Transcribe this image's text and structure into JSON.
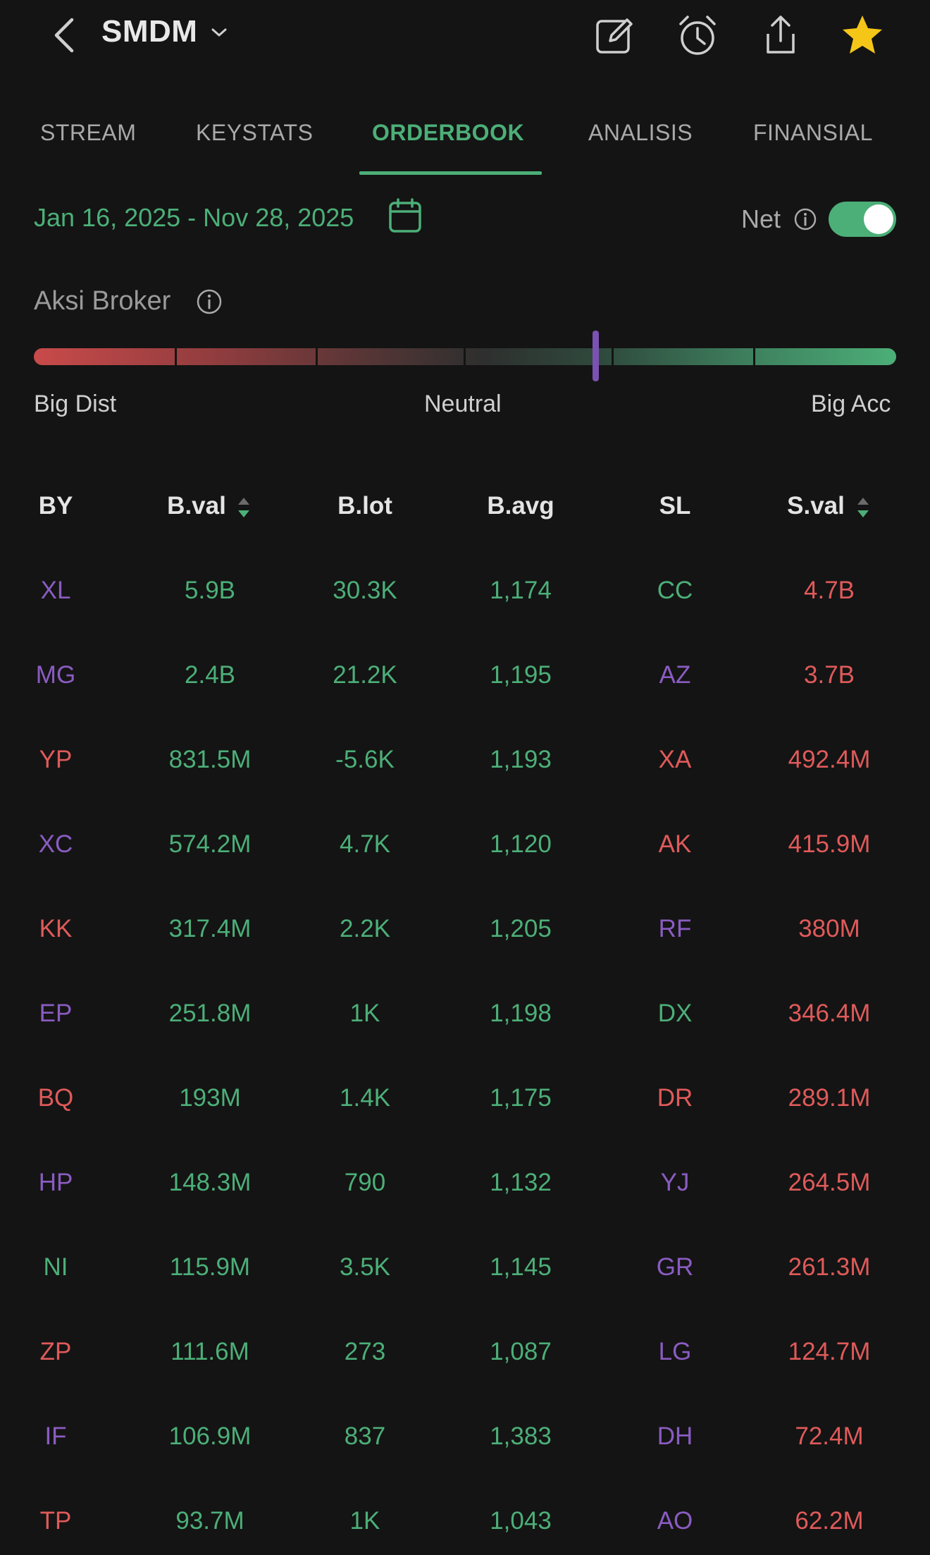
{
  "colors": {
    "green": "#4caf78",
    "red": "#e05a5a",
    "purple": "#8a5cc2",
    "muted": "#a9a9a9",
    "star": "#f5c518"
  },
  "header": {
    "ticker": "SMDM",
    "icons": [
      "back-chevron-icon",
      "chevron-down-icon",
      "edit-icon",
      "alarm-icon",
      "share-icon",
      "star-icon"
    ]
  },
  "tabs": [
    {
      "label": "STREAM",
      "active": false
    },
    {
      "label": "KEYSTATS",
      "active": false
    },
    {
      "label": "ORDERBOOK",
      "active": true
    },
    {
      "label": "ANALISIS",
      "active": false
    },
    {
      "label": "FINANSIAL",
      "active": false
    }
  ],
  "filter": {
    "date_range": "Jan 16, 2025 - Nov 28, 2025",
    "net_label": "Net",
    "net_enabled": true
  },
  "aksi": {
    "title": "Aksi Broker",
    "left_label": "Big Dist",
    "mid_label": "Neutral",
    "right_label": "Big Acc",
    "marker_level": 0.65
  },
  "table": {
    "headers": [
      "BY",
      "B.val",
      "B.lot",
      "B.avg",
      "SL",
      "S.val"
    ],
    "rows": [
      {
        "by": "XL",
        "by_c": "purple",
        "bval": "5.9B",
        "blot": "30.3K",
        "bavg": "1,174",
        "sl": "CC",
        "sl_c": "green",
        "sval": "4.7B"
      },
      {
        "by": "MG",
        "by_c": "purple",
        "bval": "2.4B",
        "blot": "21.2K",
        "bavg": "1,195",
        "sl": "AZ",
        "sl_c": "purple",
        "sval": "3.7B"
      },
      {
        "by": "YP",
        "by_c": "red",
        "bval": "831.5M",
        "blot": "-5.6K",
        "bavg": "1,193",
        "sl": "XA",
        "sl_c": "red",
        "sval": "492.4M"
      },
      {
        "by": "XC",
        "by_c": "purple",
        "bval": "574.2M",
        "blot": "4.7K",
        "bavg": "1,120",
        "sl": "AK",
        "sl_c": "red",
        "sval": "415.9M"
      },
      {
        "by": "KK",
        "by_c": "red",
        "bval": "317.4M",
        "blot": "2.2K",
        "bavg": "1,205",
        "sl": "RF",
        "sl_c": "purple",
        "sval": "380M"
      },
      {
        "by": "EP",
        "by_c": "purple",
        "bval": "251.8M",
        "blot": "1K",
        "bavg": "1,198",
        "sl": "DX",
        "sl_c": "green",
        "sval": "346.4M"
      },
      {
        "by": "BQ",
        "by_c": "red",
        "bval": "193M",
        "blot": "1.4K",
        "bavg": "1,175",
        "sl": "DR",
        "sl_c": "red",
        "sval": "289.1M"
      },
      {
        "by": "HP",
        "by_c": "purple",
        "bval": "148.3M",
        "blot": "790",
        "bavg": "1,132",
        "sl": "YJ",
        "sl_c": "purple",
        "sval": "264.5M"
      },
      {
        "by": "NI",
        "by_c": "green",
        "bval": "115.9M",
        "blot": "3.5K",
        "bavg": "1,145",
        "sl": "GR",
        "sl_c": "purple",
        "sval": "261.3M"
      },
      {
        "by": "ZP",
        "by_c": "red",
        "bval": "111.6M",
        "blot": "273",
        "bavg": "1,087",
        "sl": "LG",
        "sl_c": "purple",
        "sval": "124.7M"
      },
      {
        "by": "IF",
        "by_c": "purple",
        "bval": "106.9M",
        "blot": "837",
        "bavg": "1,383",
        "sl": "DH",
        "sl_c": "purple",
        "sval": "72.4M"
      },
      {
        "by": "TP",
        "by_c": "red",
        "bval": "93.7M",
        "blot": "1K",
        "bavg": "1,043",
        "sl": "AO",
        "sl_c": "purple",
        "sval": "62.2M"
      }
    ]
  }
}
